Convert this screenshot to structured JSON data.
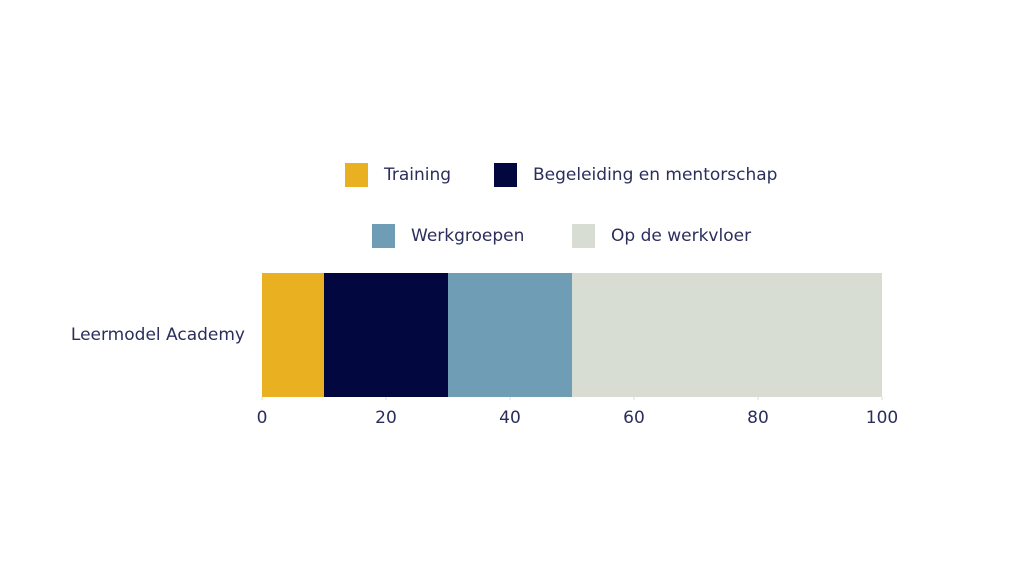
{
  "chart_data": {
    "type": "stacked-bar-horizontal",
    "categories": [
      "Leermodel Academy"
    ],
    "series": [
      {
        "name": "Training",
        "color": "#e9b022",
        "values": [
          10
        ]
      },
      {
        "name": "Begeleiding en mentorschap",
        "color": "#03073f",
        "values": [
          20
        ]
      },
      {
        "name": "Werkgroepen",
        "color": "#6f9db6",
        "values": [
          20
        ]
      },
      {
        "name": "Op de werkvloer",
        "color": "#d8ddd4",
        "values": [
          50
        ]
      }
    ],
    "xlim": [
      0,
      100
    ],
    "xticks": [
      0,
      20,
      40,
      60,
      80,
      100
    ],
    "grid": false
  }
}
